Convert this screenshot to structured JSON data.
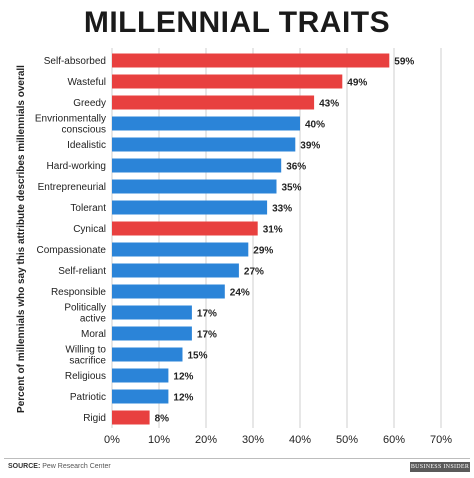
{
  "colors": {
    "highlight": "#e8403f",
    "normal": "#2b84d8",
    "grid": "#cfcfcf",
    "text": "#222222"
  },
  "footer": {
    "source_label": "SOURCE:",
    "source_text": "Pew Research Center",
    "brand": "BUSINESS INSIDER"
  },
  "chart_data": {
    "type": "bar",
    "orientation": "horizontal",
    "title": "MILLENNIAL TRAITS",
    "ylabel": "Percent of millennials who say this attribute describes millennials overall",
    "xlabel": "",
    "xlim": [
      0,
      70
    ],
    "xticks": [
      "0%",
      "10%",
      "20%",
      "30%",
      "40%",
      "50%",
      "60%",
      "70%"
    ],
    "grid": true,
    "categories": [
      "Self-absorbed",
      "Wasteful",
      "Greedy",
      "Envrionmentally conscious",
      "Idealistic",
      "Hard-working",
      "Entrepreneurial",
      "Tolerant",
      "Cynical",
      "Compassionate",
      "Self-reliant",
      "Responsible",
      "Politically active",
      "Moral",
      "Willing to sacrifice",
      "Religious",
      "Patriotic",
      "Rigid"
    ],
    "category_lines": [
      [
        "Self-absorbed"
      ],
      [
        "Wasteful"
      ],
      [
        "Greedy"
      ],
      [
        "Envrionmentally",
        "conscious"
      ],
      [
        "Idealistic"
      ],
      [
        "Hard-working"
      ],
      [
        "Entrepreneurial"
      ],
      [
        "Tolerant"
      ],
      [
        "Cynical"
      ],
      [
        "Compassionate"
      ],
      [
        "Self-reliant"
      ],
      [
        "Responsible"
      ],
      [
        "Politically",
        "active"
      ],
      [
        "Moral"
      ],
      [
        "Willing to",
        "sacrifice"
      ],
      [
        "Religious"
      ],
      [
        "Patriotic"
      ],
      [
        "Rigid"
      ]
    ],
    "values": [
      59,
      49,
      43,
      40,
      39,
      36,
      35,
      33,
      31,
      29,
      27,
      24,
      17,
      17,
      15,
      12,
      12,
      8
    ],
    "value_labels": [
      "59%",
      "49%",
      "43%",
      "40%",
      "39%",
      "36%",
      "35%",
      "33%",
      "31%",
      "29%",
      "27%",
      "24%",
      "17%",
      "17%",
      "15%",
      "12%",
      "12%",
      "8%"
    ],
    "highlighted": [
      true,
      true,
      true,
      false,
      false,
      false,
      false,
      false,
      true,
      false,
      false,
      false,
      false,
      false,
      false,
      false,
      false,
      true
    ]
  }
}
